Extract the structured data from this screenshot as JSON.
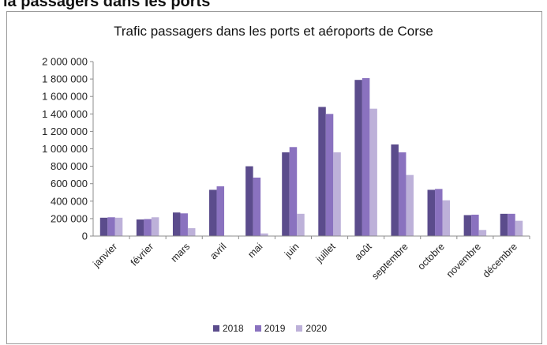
{
  "header_fragment": "la passagers dans les ports",
  "chart_data": {
    "type": "bar",
    "title": "Trafic passagers dans les ports et aéroports de Corse",
    "xlabel": "",
    "ylabel": "",
    "ylim": [
      0,
      2000000
    ],
    "yticks": [
      {
        "value": 0,
        "label": "0"
      },
      {
        "value": 200000,
        "label": "200 000"
      },
      {
        "value": 400000,
        "label": "400 000"
      },
      {
        "value": 600000,
        "label": "600 000"
      },
      {
        "value": 800000,
        "label": "800 000"
      },
      {
        "value": 1000000,
        "label": "1 000 000"
      },
      {
        "value": 1200000,
        "label": "1 200 000"
      },
      {
        "value": 1400000,
        "label": "1 400 000"
      },
      {
        "value": 1600000,
        "label": "1 600 000"
      },
      {
        "value": 1800000,
        "label": "1 800 000"
      },
      {
        "value": 2000000,
        "label": "2 000 000"
      }
    ],
    "categories": [
      "janvier",
      "février",
      "mars",
      "avril",
      "mai",
      "juin",
      "juillet",
      "août",
      "septembre",
      "octobre",
      "novembre",
      "décembre"
    ],
    "series": [
      {
        "name": "2018",
        "color": "#5b4c8c",
        "values": [
          210000,
          190000,
          270000,
          530000,
          800000,
          960000,
          1480000,
          1790000,
          1050000,
          530000,
          240000,
          255000
        ]
      },
      {
        "name": "2019",
        "color": "#8a72bf",
        "values": [
          215000,
          195000,
          260000,
          570000,
          670000,
          1020000,
          1400000,
          1810000,
          960000,
          540000,
          245000,
          255000
        ]
      },
      {
        "name": "2020",
        "color": "#bdb1d9",
        "values": [
          210000,
          215000,
          90000,
          5000,
          30000,
          255000,
          960000,
          1460000,
          700000,
          410000,
          70000,
          175000
        ]
      }
    ],
    "grid": false,
    "legend_position": "bottom"
  }
}
